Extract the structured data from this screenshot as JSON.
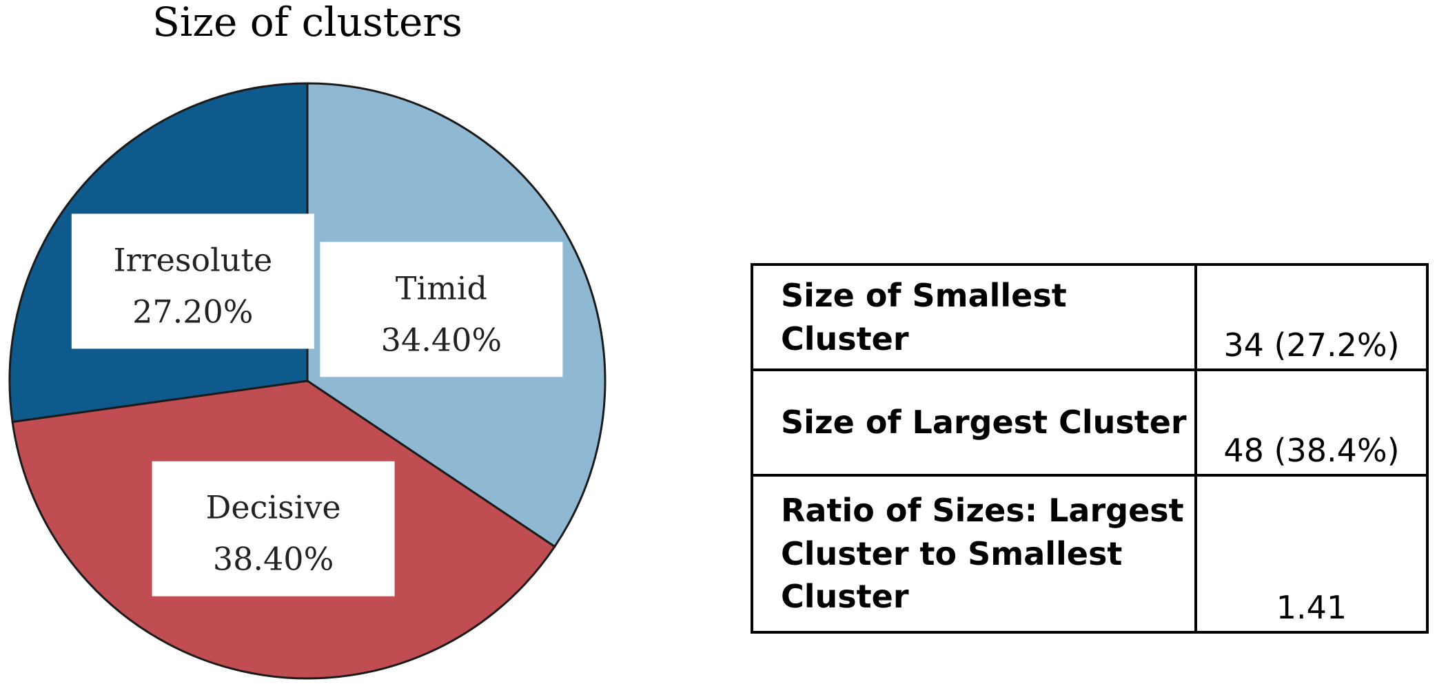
{
  "chart_data": {
    "type": "pie",
    "title": "Size of clusters",
    "categories": [
      "Timid",
      "Decisive",
      "Irresolute"
    ],
    "values": [
      34.4,
      38.4,
      27.2
    ],
    "labels": [
      "34.40%",
      "38.40%",
      "27.20%"
    ],
    "colors": [
      "#8fb9d3",
      "#c04d52",
      "#0e5a8c"
    ],
    "start_angle_deg": 0,
    "direction": "clockwise",
    "legend": "none",
    "data_label_style": "white boxes inside slices"
  },
  "table": {
    "rows": [
      {
        "label": "Size of Smallest Cluster",
        "value": "34 (27.2%)"
      },
      {
        "label": "Size of Largest Cluster",
        "value": "48 (38.4%)"
      },
      {
        "label": "Ratio of Sizes: Largest Cluster to Smallest Cluster",
        "value": "1.41"
      }
    ]
  }
}
